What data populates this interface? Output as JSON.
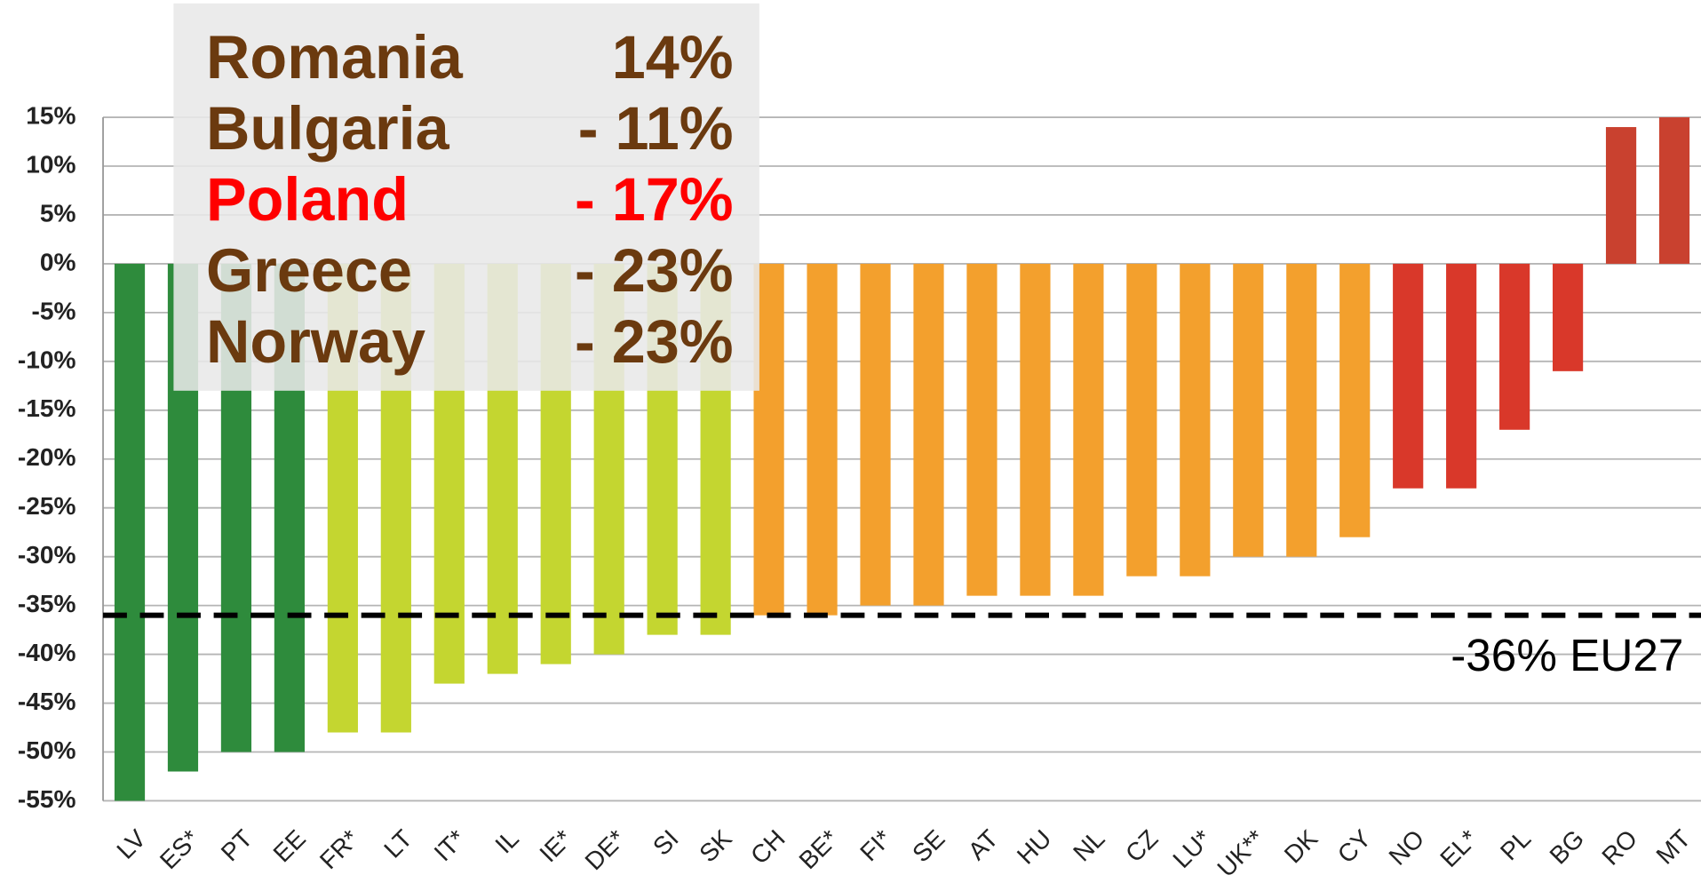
{
  "chart_data": {
    "type": "bar",
    "categories": [
      "LV",
      "ES*",
      "PT",
      "EE",
      "FR*",
      "LT",
      "IT*",
      "IL",
      "IE*",
      "DE*",
      "SI",
      "SK",
      "CH",
      "BE*",
      "FI*",
      "SE",
      "AT",
      "HU",
      "NL",
      "CZ",
      "LU*",
      "UK**",
      "DK",
      "CY",
      "NO",
      "EL*",
      "PL",
      "BG",
      "RO",
      "MT"
    ],
    "values": [
      -55,
      -52,
      -50,
      -50,
      -48,
      -48,
      -43,
      -42,
      -41,
      -40,
      -38,
      -38,
      -36,
      -36,
      -35,
      -35,
      -34,
      -34,
      -34,
      -32,
      -32,
      -30,
      -30,
      -28,
      -23,
      -23,
      -17,
      -11,
      14,
      15
    ],
    "colors": [
      "#2e8b3c",
      "#2e8b3c",
      "#2e8b3c",
      "#2e8b3c",
      "#c4d630",
      "#c4d630",
      "#c4d630",
      "#c4d630",
      "#c4d630",
      "#c4d630",
      "#c4d630",
      "#c4d630",
      "#f3a02d",
      "#f3a02d",
      "#f3a02d",
      "#f3a02d",
      "#f3a02d",
      "#f3a02d",
      "#f3a02d",
      "#f3a02d",
      "#f3a02d",
      "#f3a02d",
      "#f3a02d",
      "#f3a02d",
      "#d9382a",
      "#d9382a",
      "#d9382a",
      "#d9382a",
      "#c9412f",
      "#c9412f"
    ],
    "ylim": [
      -55,
      15
    ],
    "yticks": [
      {
        "value": 15,
        "label": "15%"
      },
      {
        "value": 10,
        "label": "10%"
      },
      {
        "value": 5,
        "label": "5%"
      },
      {
        "value": 0,
        "label": "0%"
      },
      {
        "value": -5,
        "label": "-5%"
      },
      {
        "value": -10,
        "label": "-10%"
      },
      {
        "value": -15,
        "label": "-15%"
      },
      {
        "value": -20,
        "label": "-20%"
      },
      {
        "value": -25,
        "label": "-25%"
      },
      {
        "value": -30,
        "label": "-30%"
      },
      {
        "value": -35,
        "label": "-35%"
      },
      {
        "value": -40,
        "label": "-40%"
      },
      {
        "value": -45,
        "label": "-45%"
      },
      {
        "value": -50,
        "label": "-50%"
      },
      {
        "value": -55,
        "label": "-55%"
      }
    ],
    "grid": true,
    "reference_line": {
      "value": -36,
      "label": "-36% EU27"
    },
    "highlights": [
      {
        "country": "Romania",
        "value": 14,
        "label": "14%",
        "color": "#6b3a0f"
      },
      {
        "country": "Bulgaria",
        "value": -11,
        "label": "- 11%",
        "color": "#6b3a0f"
      },
      {
        "country": "Poland",
        "value": -17,
        "label": "- 17%",
        "color": "#ff0000"
      },
      {
        "country": "Greece",
        "value": -23,
        "label": "- 23%",
        "color": "#6b3a0f"
      },
      {
        "country": "Norway",
        "value": -23,
        "label": "- 23%",
        "color": "#6b3a0f"
      }
    ]
  }
}
